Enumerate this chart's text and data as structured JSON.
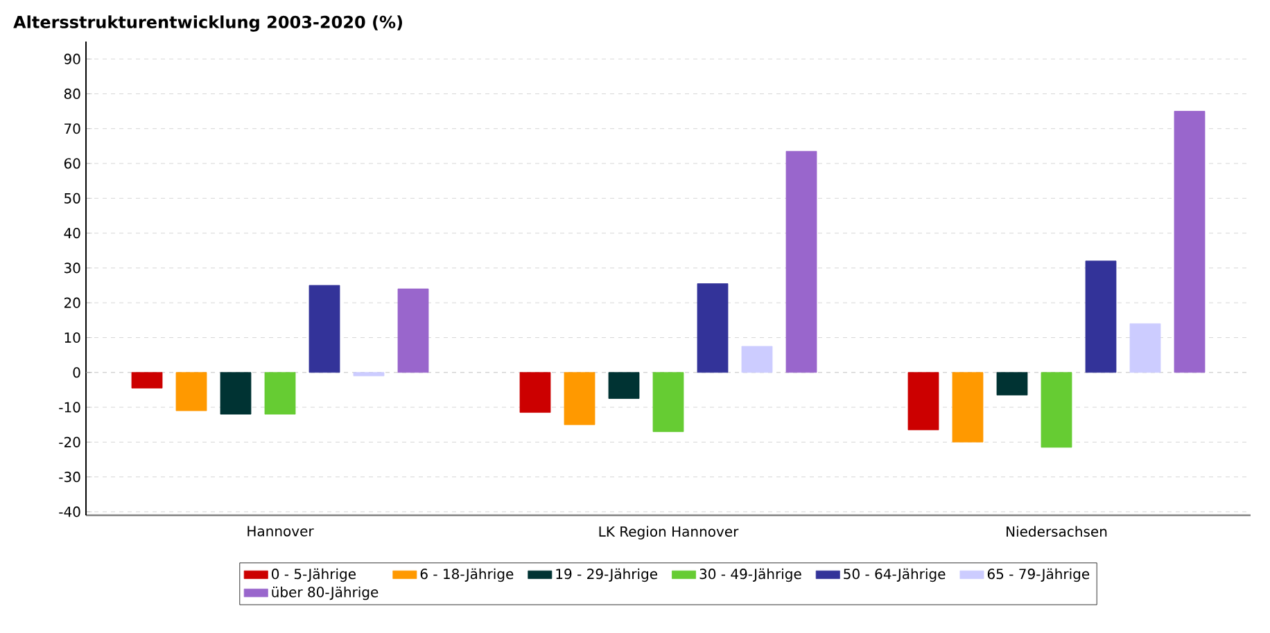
{
  "chart_data": {
    "type": "bar",
    "title": "Altersstrukturentwicklung 2003-2020 (%)",
    "categories": [
      "Hannover",
      "LK Region Hannover",
      "Niedersachsen"
    ],
    "series": [
      {
        "name": "0 - 5-Jährige",
        "color": "#cc0000",
        "values": [
          -4.5,
          -11.5,
          -16.5
        ]
      },
      {
        "name": "6 - 18-Jährige",
        "color": "#ff9900",
        "values": [
          -11,
          -15,
          -20
        ]
      },
      {
        "name": "19 - 29-Jährige",
        "color": "#003333",
        "values": [
          -12,
          -7.5,
          -6.5
        ]
      },
      {
        "name": "30 - 49-Jährige",
        "color": "#66cc33",
        "values": [
          -12,
          -17,
          -21.5
        ]
      },
      {
        "name": "50 - 64-Jährige",
        "color": "#333399",
        "values": [
          25,
          25.5,
          32
        ]
      },
      {
        "name": "65 - 79-Jährige",
        "color": "#ccccff",
        "values": [
          -1,
          7.5,
          14
        ]
      },
      {
        "name": "über 80-Jährige",
        "color": "#9966cc",
        "values": [
          24,
          63.5,
          75
        ]
      }
    ],
    "ylim": [
      -41,
      95
    ],
    "yticks": [
      -40,
      -30,
      -20,
      -10,
      0,
      10,
      20,
      30,
      40,
      50,
      60,
      70,
      80,
      90
    ],
    "grid": "y",
    "legend": "bottom"
  }
}
